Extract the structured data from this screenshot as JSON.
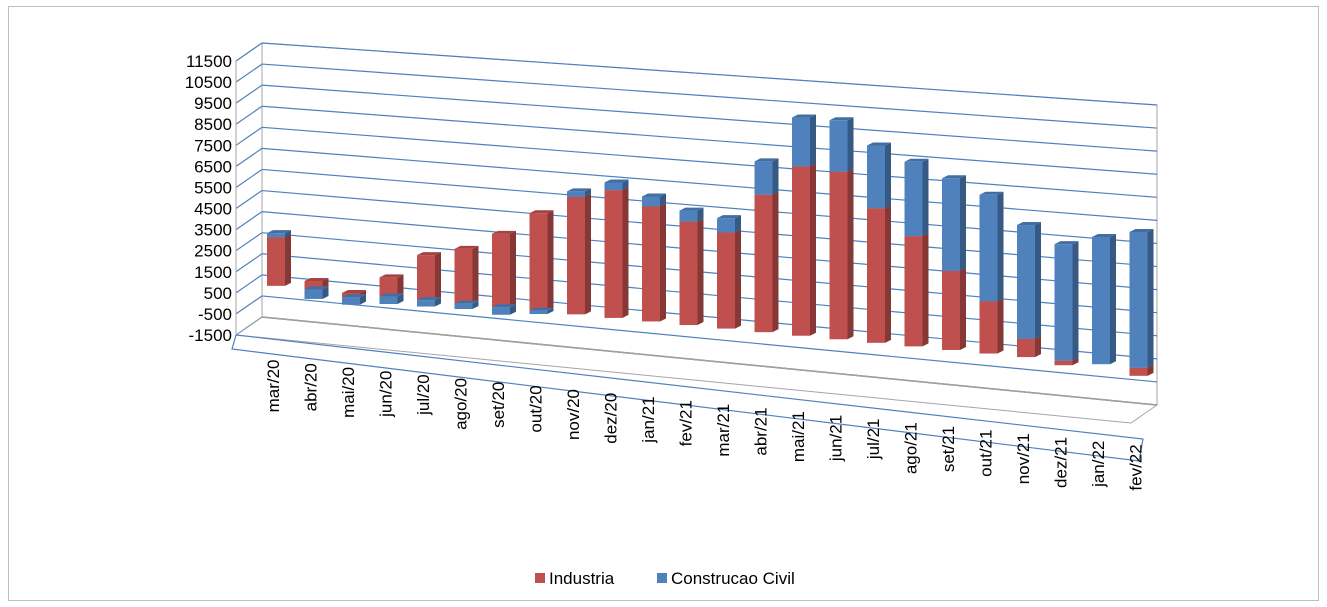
{
  "chart_data": {
    "type": "bar",
    "stacked": true,
    "style": "3d-perspective",
    "categories": [
      "mar/20",
      "abr/20",
      "mai/20",
      "jun/20",
      "jul/20",
      "ago/20",
      "set/20",
      "out/20",
      "nov/20",
      "dez/20",
      "jan/21",
      "fev/21",
      "mar/21",
      "abr/21",
      "mai/21",
      "jun/21",
      "jul/21",
      "ago/21",
      "set/21",
      "out/21",
      "nov/21",
      "dez/21",
      "jan/22",
      "fev/22"
    ],
    "series": [
      {
        "name": "Industria",
        "color": "#c0504d",
        "values": [
          2300,
          400,
          -200,
          900,
          2100,
          2550,
          3400,
          4500,
          5400,
          5850,
          5250,
          4700,
          4350,
          6200,
          7600,
          7500,
          6000,
          4900,
          3500,
          2300,
          800,
          -200,
          0,
          -350
        ]
      },
      {
        "name": "Construcao Civil",
        "color": "#4f81bd",
        "values": [
          200,
          -450,
          -350,
          -350,
          -300,
          -250,
          -350,
          -150,
          250,
          350,
          450,
          500,
          650,
          1500,
          2200,
          2300,
          2800,
          3300,
          4100,
          4700,
          5000,
          5100,
          5550,
          5900
        ]
      }
    ],
    "y_ticks": [
      "11500",
      "10500",
      "9500",
      "8500",
      "7500",
      "6500",
      "5500",
      "4500",
      "3500",
      "2500",
      "1500",
      "500",
      "-500",
      "-1500"
    ],
    "ylim": [
      -1500,
      11500
    ],
    "grid": true,
    "legend_position": "bottom"
  },
  "legend": {
    "industria": "Industria",
    "construcao": "Construcao Civil"
  }
}
